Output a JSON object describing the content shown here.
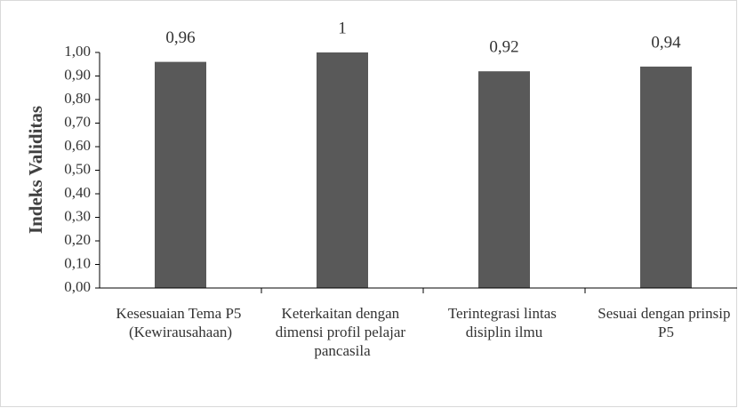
{
  "chart_data": {
    "type": "bar",
    "y_axis_label": "Indeks Validitas",
    "categories": [
      "Kesesuaian Tema P5 (Kewirausahaan)",
      "Keterkaitan dengan dimensi profil pelajar pancasila",
      "Terintegrasi lintas disiplin ilmu",
      "Sesuai dengan prinsip P5"
    ],
    "values": [
      0.96,
      1,
      0.92,
      0.94
    ],
    "value_labels": [
      "0,96",
      "1",
      "0,92",
      "0,94"
    ],
    "color": "#595959",
    "ylim": [
      0,
      1
    ],
    "yticks": [
      {
        "value": 0,
        "label": "0,00"
      },
      {
        "value": 0.1,
        "label": "0,10"
      },
      {
        "value": 0.2,
        "label": "0,20"
      },
      {
        "value": 0.3,
        "label": "0,30"
      },
      {
        "value": 0.4,
        "label": "0,40"
      },
      {
        "value": 0.5,
        "label": "0,50"
      },
      {
        "value": 0.6,
        "label": "0,60"
      },
      {
        "value": 0.7,
        "label": "0,70"
      },
      {
        "value": 0.8,
        "label": "0,80"
      },
      {
        "value": 0.9,
        "label": "0,90"
      },
      {
        "value": 1,
        "label": "1,00"
      }
    ],
    "grid": false
  }
}
